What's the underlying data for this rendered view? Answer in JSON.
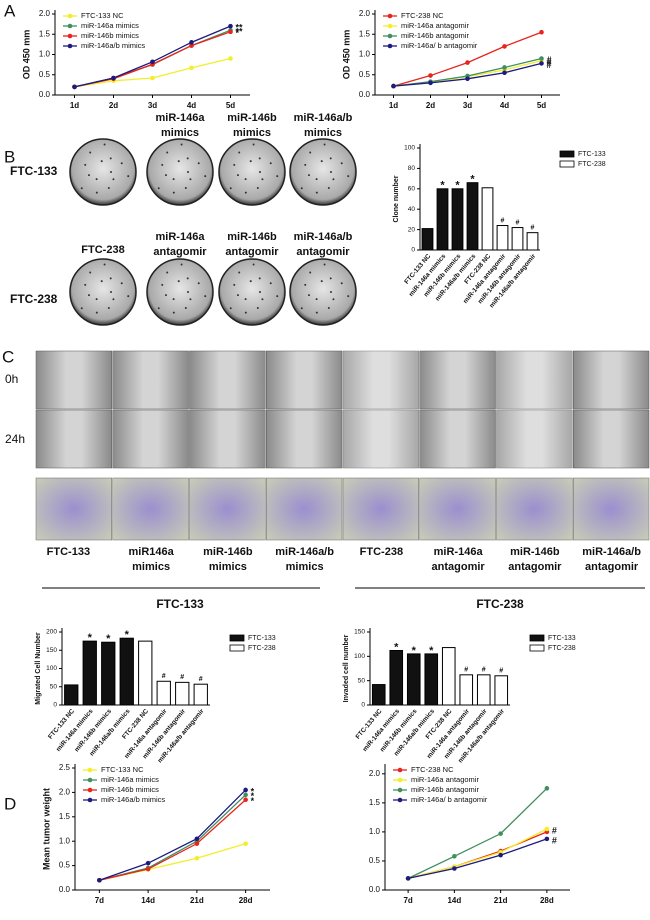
{
  "panels": {
    "letters": [
      "A",
      "B",
      "C",
      "D"
    ],
    "plate_rows": [
      "FTC-133",
      "FTC-238"
    ],
    "plate_top_labels": [
      [
        "miR-146a",
        "mimics"
      ],
      [
        "miR-146b",
        "mimics"
      ],
      [
        "miR-146a/b",
        "mimics"
      ]
    ],
    "plate_mid_labels": [
      [
        "FTC-238"
      ],
      [
        "miR-146a",
        "antagomir"
      ],
      [
        "miR-146b",
        "antagomir"
      ],
      [
        "miR-146a/b",
        "antagomir"
      ]
    ],
    "wound_rows": [
      "0h",
      "24h"
    ],
    "transwell_labels": [
      [
        "FTC-133"
      ],
      [
        "miR146a",
        "mimics"
      ],
      [
        "miR-146b",
        "mimics"
      ],
      [
        "miR-146a/b",
        "mimics"
      ],
      [
        "FTC-238"
      ],
      [
        "miR-146a",
        "antagomir"
      ],
      [
        "miR-146b",
        "antagomir"
      ],
      [
        "miR-146a/b",
        "antagomir"
      ]
    ],
    "groups": [
      "FTC-133",
      "FTC-238"
    ]
  },
  "chart_data": [
    {
      "type": "line",
      "y_label": "OD 450 mm",
      "categories": [
        "1d",
        "2d",
        "3d",
        "4d",
        "5d"
      ],
      "ylim": [
        0,
        2
      ],
      "yticks": [
        {
          "value": 0,
          "label": "0.0"
        },
        0.5,
        {
          "value": 1,
          "label": "1.0"
        },
        1.5,
        {
          "value": 2,
          "label": "2.0"
        }
      ],
      "legend": "upper left",
      "series": [
        {
          "name": "FTC-133 NC",
          "color": "#f2ee2a",
          "values": [
            0.2,
            0.35,
            0.42,
            0.67,
            0.9
          ]
        },
        {
          "name": "miR-146a mimics",
          "color": "#3f8f5f",
          "values": [
            0.2,
            0.42,
            0.75,
            1.22,
            1.6
          ]
        },
        {
          "name": "miR-146b mimics",
          "color": "#e8241c",
          "values": [
            0.2,
            0.4,
            0.76,
            1.22,
            1.56
          ]
        },
        {
          "name": "miR-146a/b mimics",
          "color": "#1d1a80",
          "values": [
            0.2,
            0.42,
            0.82,
            1.3,
            1.7
          ]
        }
      ],
      "annotations": [
        null,
        "**",
        "*",
        "**"
      ]
    },
    {
      "type": "line",
      "y_label": "OD 450 mm",
      "categories": [
        "1d",
        "2d",
        "3d",
        "4d",
        "5d"
      ],
      "ylim": [
        0,
        2
      ],
      "yticks": [
        {
          "value": 0,
          "label": "0.0"
        },
        0.5,
        {
          "value": 1,
          "label": "1.0"
        },
        1.5,
        {
          "value": 2,
          "label": "2.0"
        }
      ],
      "legend": "upper left",
      "series": [
        {
          "name": "FTC-238 NC",
          "color": "#e8241c",
          "values": [
            0.22,
            0.48,
            0.8,
            1.2,
            1.55
          ]
        },
        {
          "name": "miR-146a antagomir",
          "color": "#f2ee2a",
          "values": [
            0.22,
            0.32,
            0.45,
            0.62,
            0.85
          ]
        },
        {
          "name": "miR-146b antagomir",
          "color": "#3f8f5f",
          "values": [
            0.22,
            0.33,
            0.47,
            0.68,
            0.9
          ]
        },
        {
          "name": "miR-146a/ b antagomir",
          "color": "#1d1a80",
          "values": [
            0.22,
            0.3,
            0.4,
            0.55,
            0.78
          ]
        }
      ],
      "annotations": [
        null,
        "#",
        "#",
        "#"
      ]
    },
    {
      "type": "bar",
      "y_label": "Clone number",
      "categories": [
        "FTC-133 NC",
        "miR-146a mimics",
        "miR-146b mimics",
        "miR-146a/b mimics",
        "FTC-238 NC",
        "miR-146a antagomir",
        "miR-146b antagomir",
        "miR-146a/b antagomir"
      ],
      "ylim": [
        0,
        100
      ],
      "yticks": [
        0,
        20,
        40,
        60,
        80,
        100
      ],
      "legend": "right",
      "series": [
        {
          "name": "FTC-133",
          "color": "#111111",
          "values": [
            21,
            60,
            60,
            66,
            null,
            null,
            null,
            null
          ]
        },
        {
          "name": "FTC-238",
          "color": "#ffffff",
          "values": [
            null,
            null,
            null,
            null,
            61,
            24,
            22,
            17
          ]
        }
      ],
      "annotations": [
        null,
        "*",
        "*",
        "*",
        null,
        "#",
        "#",
        "#"
      ]
    },
    {
      "type": "bar",
      "y_label": "Migrated Cell Number",
      "categories": [
        "FTC-133 NC",
        "miR-146a mimics",
        "miR-146b mimics",
        "miR-146a/b mimics",
        "FTC-238 NC",
        "miR-146a antagomir",
        "miR-146b antagomir",
        "miR-146a/b antagomir"
      ],
      "ylim": [
        0,
        200
      ],
      "yticks": [
        0,
        50,
        100,
        150,
        200
      ],
      "legend": "right",
      "series": [
        {
          "name": "FTC-133",
          "color": "#111111",
          "values": [
            55,
            175,
            172,
            183,
            null,
            null,
            null,
            null
          ]
        },
        {
          "name": "FTC-238",
          "color": "#ffffff",
          "values": [
            null,
            null,
            null,
            null,
            175,
            65,
            62,
            57
          ]
        }
      ],
      "annotations": [
        null,
        "*",
        "*",
        "*",
        null,
        "#",
        "#",
        "#"
      ]
    },
    {
      "type": "bar",
      "y_label": "Invaded cell number",
      "categories": [
        "FTC-133 NC",
        "miR-146a mimics",
        "miR-146b mimics",
        "miR-146a/b mimics",
        "FTC-238 NC",
        "miR-146a antagomir",
        "miR-146b antagomir",
        "miR-146a/b antagomir"
      ],
      "ylim": [
        0,
        150
      ],
      "yticks": [
        0,
        50,
        100,
        150
      ],
      "legend": "right",
      "series": [
        {
          "name": "FTC-133",
          "color": "#111111",
          "values": [
            42,
            112,
            105,
            105,
            null,
            null,
            null,
            null
          ]
        },
        {
          "name": "FTC-238",
          "color": "#ffffff",
          "values": [
            null,
            null,
            null,
            null,
            118,
            62,
            62,
            60
          ]
        }
      ],
      "annotations": [
        null,
        "*",
        "*",
        "*",
        null,
        "#",
        "#",
        "#"
      ]
    },
    {
      "type": "line",
      "y_label": "Mean tumor weight",
      "categories": [
        "7d",
        "14d",
        "21d",
        "28d"
      ],
      "ylim": [
        0,
        2.5
      ],
      "yticks": [
        {
          "value": 0,
          "label": "0.0"
        },
        0.5,
        {
          "value": 1,
          "label": "1.0"
        },
        1.5,
        {
          "value": 2,
          "label": "2.0"
        },
        2.5
      ],
      "legend": "upper left",
      "series": [
        {
          "name": "FTC-133 NC",
          "color": "#f2ee2a",
          "values": [
            0.2,
            0.42,
            0.65,
            0.95
          ]
        },
        {
          "name": "miR-146a mimics",
          "color": "#3f8f5f",
          "values": [
            0.2,
            0.45,
            1.0,
            1.95
          ]
        },
        {
          "name": "miR-146b mimics",
          "color": "#e8241c",
          "values": [
            0.2,
            0.43,
            0.95,
            1.85
          ]
        },
        {
          "name": "miR-146a/b mimics",
          "color": "#1d1a80",
          "values": [
            0.2,
            0.55,
            1.05,
            2.05
          ]
        }
      ],
      "annotations": [
        null,
        "*",
        "*",
        "*"
      ]
    },
    {
      "type": "line",
      "categories": [
        "7d",
        "14d",
        "21d",
        "28d"
      ],
      "ylim": [
        0,
        2.1
      ],
      "yticks": [
        {
          "value": 0,
          "label": "0.0"
        },
        0.5,
        {
          "value": 1,
          "label": "1.0"
        },
        1.5,
        {
          "value": 2,
          "label": "2.0"
        }
      ],
      "legend": "upper left",
      "series": [
        {
          "name": "FTC-238 NC",
          "color": "#e8241c",
          "values": [
            0.2,
            0.4,
            0.67,
            1.0
          ]
        },
        {
          "name": "miR-146a antagomir",
          "color": "#f2ee2a",
          "values": [
            0.2,
            0.4,
            0.65,
            1.05
          ]
        },
        {
          "name": "miR-146b antagomir",
          "color": "#3f8f5f",
          "values": [
            0.2,
            0.58,
            0.97,
            1.75
          ]
        },
        {
          "name": "miR-146a/ b antagomir",
          "color": "#1d1a80",
          "values": [
            0.2,
            0.37,
            0.6,
            0.88
          ]
        }
      ],
      "annotations": [
        null,
        "#",
        null,
        "#"
      ]
    }
  ]
}
